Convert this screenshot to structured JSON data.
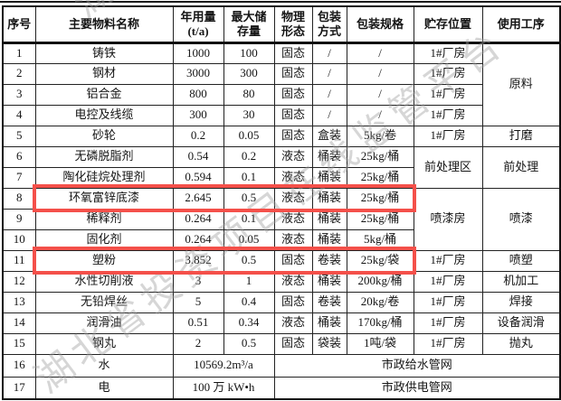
{
  "document": {
    "watermark": {
      "text": "湖北省投资项目在线监管平台",
      "fragment": "湖",
      "color": "#9e9e9e"
    },
    "highlight": {
      "color": "#f4504a",
      "highlighted_row_numbers": [
        "8",
        "11"
      ]
    },
    "table": {
      "headers": [
        {
          "key": "index",
          "label": "序号"
        },
        {
          "key": "material-name",
          "label": "主要物料名称"
        },
        {
          "key": "annual-usage",
          "label": "年用量\n(t/a)"
        },
        {
          "key": "max-storage",
          "label": "最大储\n存量"
        },
        {
          "key": "physical-form",
          "label": "物理\n形态"
        },
        {
          "key": "packing-method",
          "label": "包装\n方式"
        },
        {
          "key": "packing-spec",
          "label": "包装规格"
        },
        {
          "key": "storage-location",
          "label": "贮存位置"
        },
        {
          "key": "process",
          "label": "使用工序"
        }
      ],
      "rows": [
        [
          "1",
          "铸铁",
          "1000",
          "100",
          "固态",
          "/",
          "/",
          "1#厂房",
          {
            "t": "原料",
            "rs": 4
          }
        ],
        [
          "2",
          "钢材",
          "3000",
          "300",
          "固态",
          "/",
          "/",
          "1#厂房"
        ],
        [
          "3",
          "铝合金",
          "800",
          "80",
          "固态",
          "/",
          "/",
          "1#厂房"
        ],
        [
          "4",
          "电控及线缆",
          "300",
          "30",
          "固态",
          "/",
          "/",
          "1#厂房"
        ],
        [
          "5",
          "砂轮",
          "0.2",
          "0.05",
          "固态",
          "盒装",
          "5kg/卷",
          "1#厂房",
          "打磨"
        ],
        [
          "6",
          "无磷脱脂剂",
          "0.54",
          "0.2",
          "液态",
          "桶装",
          "25kg/桶",
          {
            "t": "前处理区",
            "rs": 2
          },
          {
            "t": "前处理",
            "rs": 2
          }
        ],
        [
          "7",
          "陶化硅烷处理剂",
          "0.594",
          "0.1",
          "液态",
          "桶装",
          "25kg/桶"
        ],
        [
          "8",
          "环氧富锌底漆",
          "2.645",
          "0.5",
          "液态",
          "桶装",
          "25kg/桶",
          {
            "t": "喷漆房",
            "rs": 3
          },
          {
            "t": "喷漆",
            "rs": 3
          }
        ],
        [
          "9",
          "稀释剂",
          "0.264",
          "0.1",
          "液态",
          "桶装",
          "25kg/桶"
        ],
        [
          "10",
          "固化剂",
          "0.264",
          "0.05",
          "液态",
          "桶装",
          "5kg/桶"
        ],
        [
          "11",
          "塑粉",
          "3.852",
          "0.5",
          "固态",
          "卷装",
          "25kg/袋",
          "1#厂房",
          "喷塑"
        ],
        [
          "12",
          "水性切削液",
          "3",
          "1",
          "液态",
          "桶装",
          "200kg/桶",
          "1#厂房",
          "机加工"
        ],
        [
          "13",
          "无铅焊丝",
          "5",
          "0.4",
          "固态",
          "卷装",
          "20kg/卷",
          "1#厂房",
          "焊接"
        ],
        [
          "14",
          "润滑油",
          "0.51",
          "0.34",
          "液态",
          "桶装",
          "170kg/桶",
          "1#厂房",
          "设备润滑"
        ],
        [
          "15",
          "钢丸",
          "2",
          "0.5",
          "固态",
          "袋装",
          "1吨/袋",
          "1#厂房",
          "抛丸"
        ],
        [
          "16",
          "水",
          {
            "t": "10569.2m³/a",
            "cs": 2
          },
          {
            "t": "市政给水管网",
            "cs": 5
          }
        ],
        [
          "17",
          "电",
          {
            "t": "100 万 kW•h",
            "cs": 2
          },
          {
            "t": "市政供电管网",
            "cs": 5
          }
        ]
      ]
    }
  }
}
